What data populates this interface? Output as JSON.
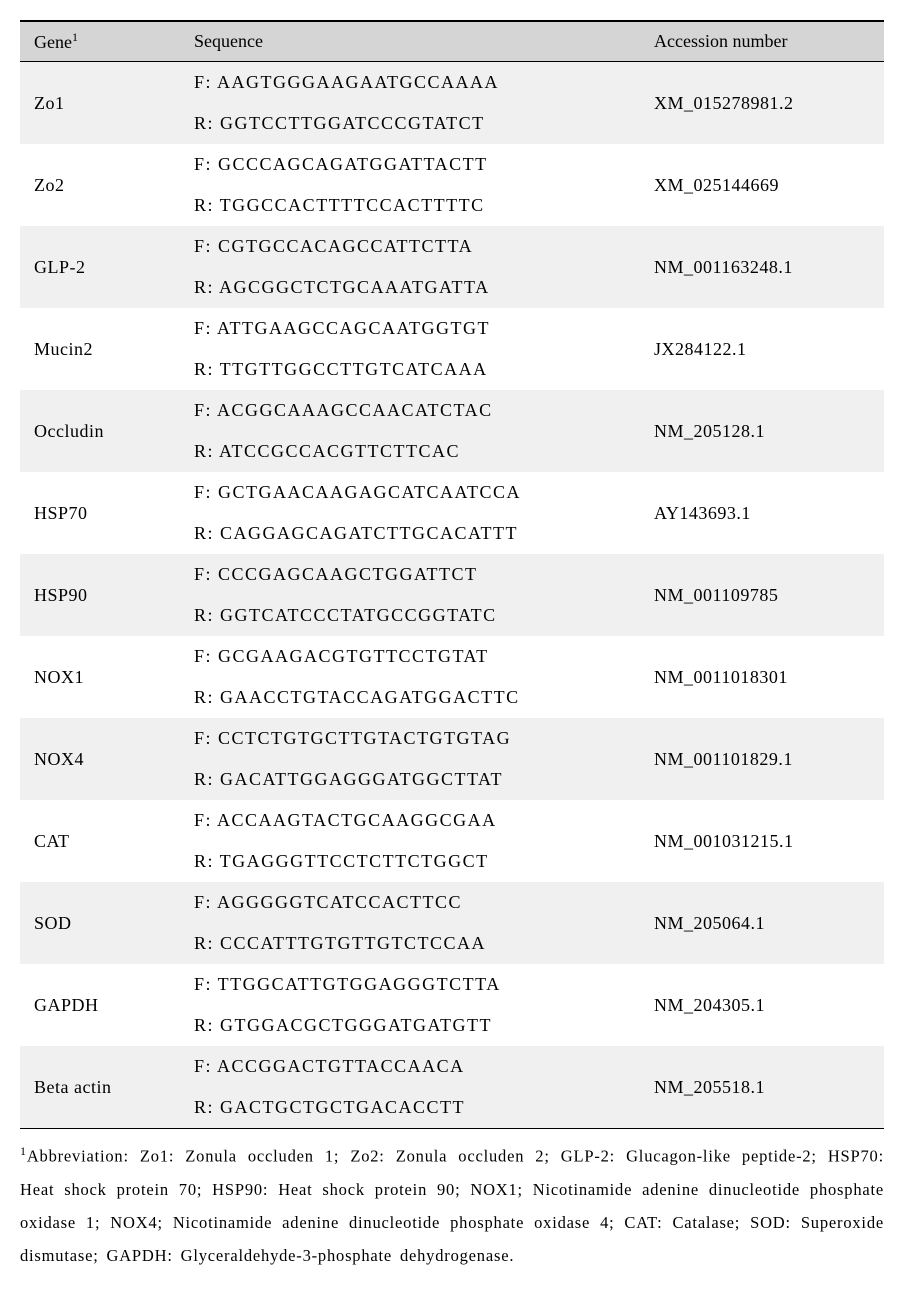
{
  "table": {
    "headers": {
      "gene": "Gene",
      "gene_sup": "1",
      "sequence": "Sequence",
      "accession": "Accession number"
    },
    "rows": [
      {
        "gene": "Zo1",
        "f": "F: AAGTGGGAAGAATGCCAAAA",
        "r": "R: GGTCCTTGGATCCCGTATCT",
        "acc": "XM_015278981.2",
        "shade": true
      },
      {
        "gene": "Zo2",
        "f": "F: GCCCAGCAGATGGATTACTT",
        "r": "R: TGGCCACTTTTCCACTTTTC",
        "acc": "XM_025144669",
        "shade": false
      },
      {
        "gene": "GLP-2",
        "f": "F: CGTGCCACAGCCATTCTTA",
        "r": "R: AGCGGCTCTGCAAATGATTA",
        "acc": "NM_001163248.1",
        "shade": true
      },
      {
        "gene": "Mucin2",
        "f": "F: ATTGAAGCCAGCAATGGTGT",
        "r": "R: TTGTTGGCCTTGTCATCAAA",
        "acc": "JX284122.1",
        "shade": false
      },
      {
        "gene": "Occludin",
        "f": "F: ACGGCAAAGCCAACATCTAC",
        "r": "R: ATCCGCCACGTTCTTCAC",
        "acc": "NM_205128.1",
        "shade": true
      },
      {
        "gene": "HSP70",
        "f": "F: GCTGAACAAGAGCATCAATCCA",
        "r": "R: CAGGAGCAGATCTTGCACATTT",
        "acc": "AY143693.1",
        "shade": false
      },
      {
        "gene": "HSP90",
        "f": "F: CCCGAGCAAGCTGGATTCT",
        "r": "R: GGTCATCCCTATGCCGGTATC",
        "acc": "NM_001109785",
        "shade": true
      },
      {
        "gene": "NOX1",
        "f": "F: GCGAAGACGTGTTCCTGTAT",
        "r": "R: GAACCTGTACCAGATGGACTTC",
        "acc": "NM_0011018301",
        "shade": false
      },
      {
        "gene": "NOX4",
        "f": "F: CCTCTGTGCTTGTACTGTGTAG",
        "r": "R: GACATTGGAGGGATGGCTTAT",
        "acc": "NM_001101829.1",
        "shade": true
      },
      {
        "gene": "CAT",
        "f": "F: ACCAAGTACTGCAAGGCGAA",
        "r": "R: TGAGGGTTCCTCTTCTGGCT",
        "acc": "NM_001031215.1",
        "shade": false
      },
      {
        "gene": "SOD",
        "f": "F: AGGGGGTCATCCACTTCC",
        "r": "R: CCCATTTGTGTTGTCTCCAA",
        "acc": "NM_205064.1",
        "shade": true
      },
      {
        "gene": "GAPDH",
        "f": "F: TTGGCATTGTGGAGGGTCTTA",
        "r": "R: GTGGACGCTGGGATGATGTT",
        "acc": "NM_204305.1",
        "shade": false
      },
      {
        "gene": "Beta actin",
        "f": "F: ACCGGACTGTTACCAACA",
        "r": "R: GACTGCTGCTGACACCTT",
        "acc": "NM_205518.1",
        "shade": true
      }
    ]
  },
  "footnote": {
    "sup": "1",
    "text": "Abbreviation: Zo1: Zonula occluden 1; Zo2: Zonula occluden 2; GLP-2: Glucagon-like peptide-2; HSP70: Heat shock protein 70; HSP90: Heat shock protein 90; NOX1; Nicotinamide adenine dinucleotide phosphate oxidase 1; NOX4; Nicotinamide adenine dinucleotide phosphate oxidase 4; CAT: Catalase; SOD: Superoxide dismutase; GAPDH: Glyceraldehyde-3-phosphate dehydrogenase."
  }
}
